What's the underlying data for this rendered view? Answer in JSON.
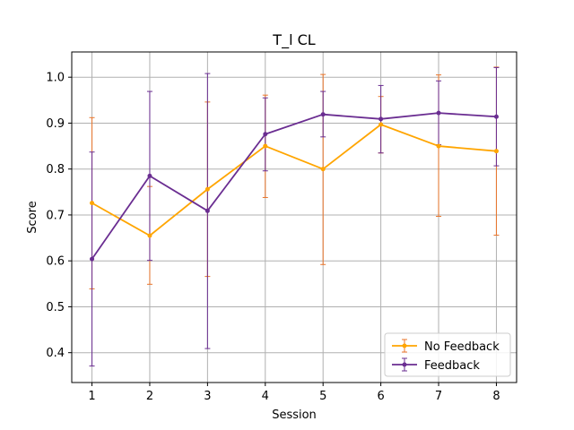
{
  "chart_data": {
    "type": "line",
    "title": "T_l CL",
    "xlabel": "Session",
    "ylabel": "Score",
    "x": [
      1,
      2,
      3,
      4,
      5,
      6,
      7,
      8
    ],
    "xlim": [
      0.65,
      8.35
    ],
    "ylim": [
      0.335,
      1.055
    ],
    "yticks": [
      0.4,
      0.5,
      0.6,
      0.7,
      0.8,
      0.9,
      1.0
    ],
    "yticklabels": [
      "0.4",
      "0.5",
      "0.6",
      "0.7",
      "0.8",
      "0.9",
      "1.0"
    ],
    "xticklabels": [
      "1",
      "2",
      "3",
      "4",
      "5",
      "6",
      "7",
      "8"
    ],
    "grid": true,
    "legend_position": "lower-right",
    "series": [
      {
        "name": "No Feedback",
        "color": "#ffa500",
        "errcolor": "#e8742a",
        "values": [
          0.726,
          0.655,
          0.756,
          0.85,
          0.8,
          0.897,
          0.85,
          0.839
        ],
        "err_low": [
          0.539,
          0.549,
          0.566,
          0.738,
          0.592,
          0.835,
          0.697,
          0.656
        ],
        "err_high": [
          0.912,
          0.762,
          0.946,
          0.961,
          1.006,
          0.958,
          1.005,
          1.022
        ]
      },
      {
        "name": "Feedback",
        "color": "#6a2d91",
        "errcolor": "#6a2d91",
        "values": [
          0.604,
          0.785,
          0.709,
          0.876,
          0.919,
          0.909,
          0.922,
          0.914
        ],
        "err_low": [
          0.371,
          0.601,
          0.409,
          0.796,
          0.87,
          0.835,
          0.853,
          0.807
        ],
        "err_high": [
          0.837,
          0.969,
          1.008,
          0.955,
          0.969,
          0.982,
          0.992,
          1.021
        ]
      }
    ]
  }
}
